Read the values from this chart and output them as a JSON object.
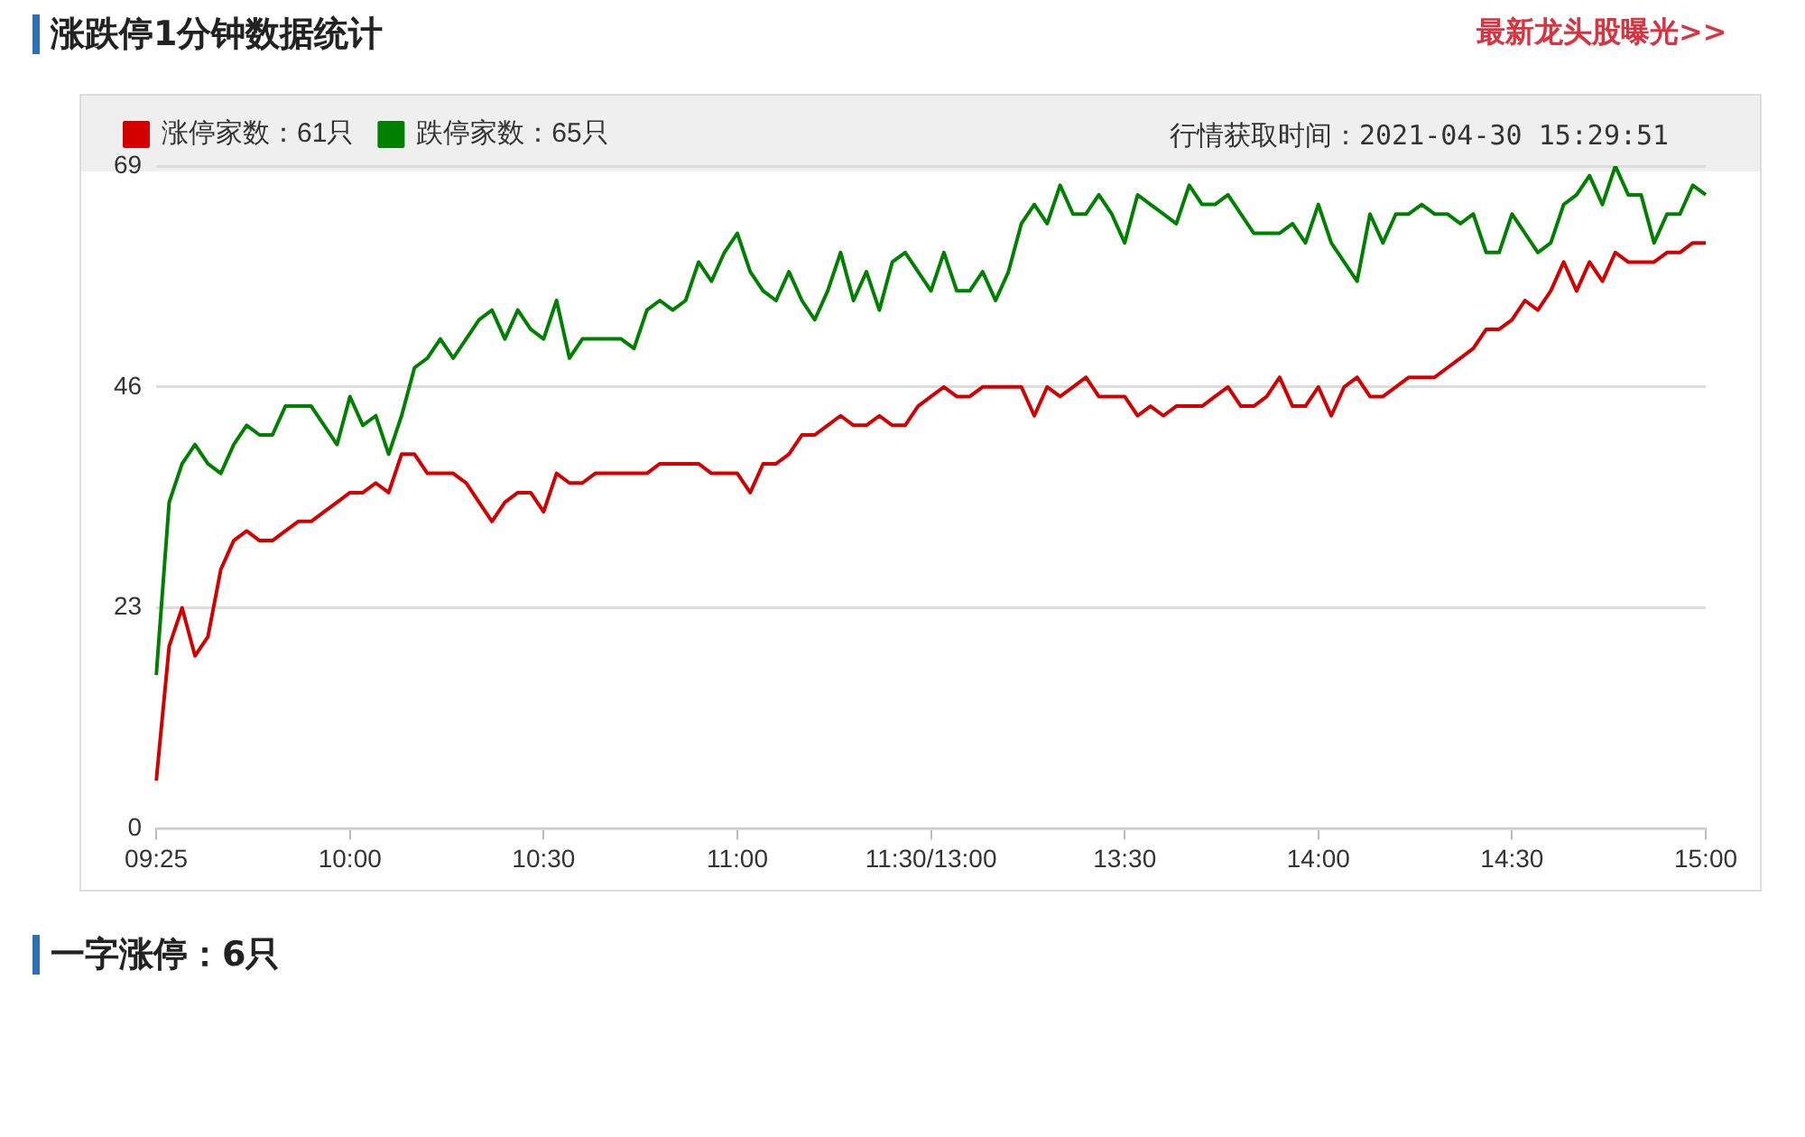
{
  "chart_data": {
    "type": "line",
    "title": "涨跌停1分钟数据统计",
    "annotations": [
      "最新龙头股曝光>>",
      "行情获取时间：2021-04-30 15:29:51",
      "一字涨停：6只"
    ],
    "categories": [
      "09:25",
      null,
      null,
      null,
      null,
      null,
      null,
      null,
      null,
      null,
      null,
      null,
      null,
      null,
      null,
      "10:00",
      null,
      null,
      null,
      null,
      null,
      null,
      null,
      null,
      null,
      null,
      null,
      null,
      null,
      null,
      "10:30",
      null,
      null,
      null,
      null,
      null,
      null,
      null,
      null,
      null,
      null,
      null,
      null,
      null,
      null,
      "11:00",
      null,
      null,
      null,
      null,
      null,
      null,
      null,
      null,
      null,
      null,
      null,
      null,
      null,
      null,
      "11:30/13:00",
      null,
      null,
      null,
      null,
      null,
      null,
      null,
      null,
      null,
      null,
      null,
      null,
      null,
      null,
      "13:30",
      null,
      null,
      null,
      null,
      null,
      null,
      null,
      null,
      null,
      null,
      null,
      null,
      null,
      null,
      "14:00",
      null,
      null,
      null,
      null,
      null,
      null,
      null,
      null,
      null,
      null,
      null,
      null,
      null,
      null,
      "14:30",
      null,
      null,
      null,
      null,
      null,
      null,
      null,
      null,
      null,
      null,
      null,
      null,
      null,
      null,
      "15:00"
    ],
    "ylim": [
      0,
      69
    ],
    "yticks": [
      0,
      23,
      46,
      69
    ],
    "grid": "y",
    "legend": "top left",
    "marker": "none",
    "line_style": "solid",
    "series": [
      {
        "name": "涨停家数：61只",
        "color": "#d40000",
        "values": [
          5,
          19,
          23,
          18,
          20,
          27,
          30,
          31,
          30,
          30,
          31,
          32,
          32,
          33,
          34,
          35,
          35,
          36,
          35,
          39,
          39,
          37,
          37,
          37,
          36,
          34,
          32,
          34,
          35,
          35,
          33,
          37,
          36,
          36,
          37,
          37,
          37,
          37,
          37,
          38,
          38,
          38,
          38,
          37,
          37,
          37,
          35,
          38,
          38,
          39,
          41,
          41,
          42,
          43,
          42,
          42,
          43,
          42,
          42,
          44,
          45,
          46,
          45,
          45,
          46,
          46,
          46,
          46,
          43,
          46,
          45,
          46,
          47,
          45,
          45,
          45,
          43,
          44,
          43,
          44,
          44,
          44,
          45,
          46,
          44,
          44,
          45,
          47,
          44,
          44,
          46,
          43,
          46,
          47,
          45,
          45,
          46,
          47,
          47,
          47,
          48,
          49,
          50,
          52,
          52,
          53,
          55,
          54,
          56,
          59,
          56,
          59,
          57,
          60,
          59,
          59,
          59,
          60,
          60,
          61,
          61
        ]
      },
      {
        "name": "跌停家数：65只",
        "color": "#008000",
        "values": [
          16,
          34,
          38,
          40,
          38,
          37,
          40,
          42,
          41,
          41,
          44,
          44,
          44,
          42,
          40,
          45,
          42,
          43,
          39,
          43,
          48,
          49,
          51,
          49,
          51,
          53,
          54,
          51,
          54,
          52,
          51,
          55,
          49,
          51,
          51,
          51,
          51,
          50,
          54,
          55,
          54,
          55,
          59,
          57,
          60,
          62,
          58,
          56,
          55,
          58,
          55,
          53,
          56,
          60,
          55,
          58,
          54,
          59,
          60,
          58,
          56,
          60,
          56,
          56,
          58,
          55,
          58,
          63,
          65,
          63,
          67,
          64,
          64,
          66,
          64,
          61,
          66,
          65,
          64,
          63,
          67,
          65,
          65,
          66,
          64,
          62,
          62,
          62,
          63,
          61,
          65,
          61,
          59,
          57,
          64,
          61,
          64,
          64,
          65,
          64,
          64,
          63,
          64,
          60,
          60,
          64,
          62,
          60,
          61,
          65,
          66,
          68,
          65,
          69,
          66,
          66,
          61,
          64,
          64,
          67,
          66
        ]
      }
    ]
  }
}
